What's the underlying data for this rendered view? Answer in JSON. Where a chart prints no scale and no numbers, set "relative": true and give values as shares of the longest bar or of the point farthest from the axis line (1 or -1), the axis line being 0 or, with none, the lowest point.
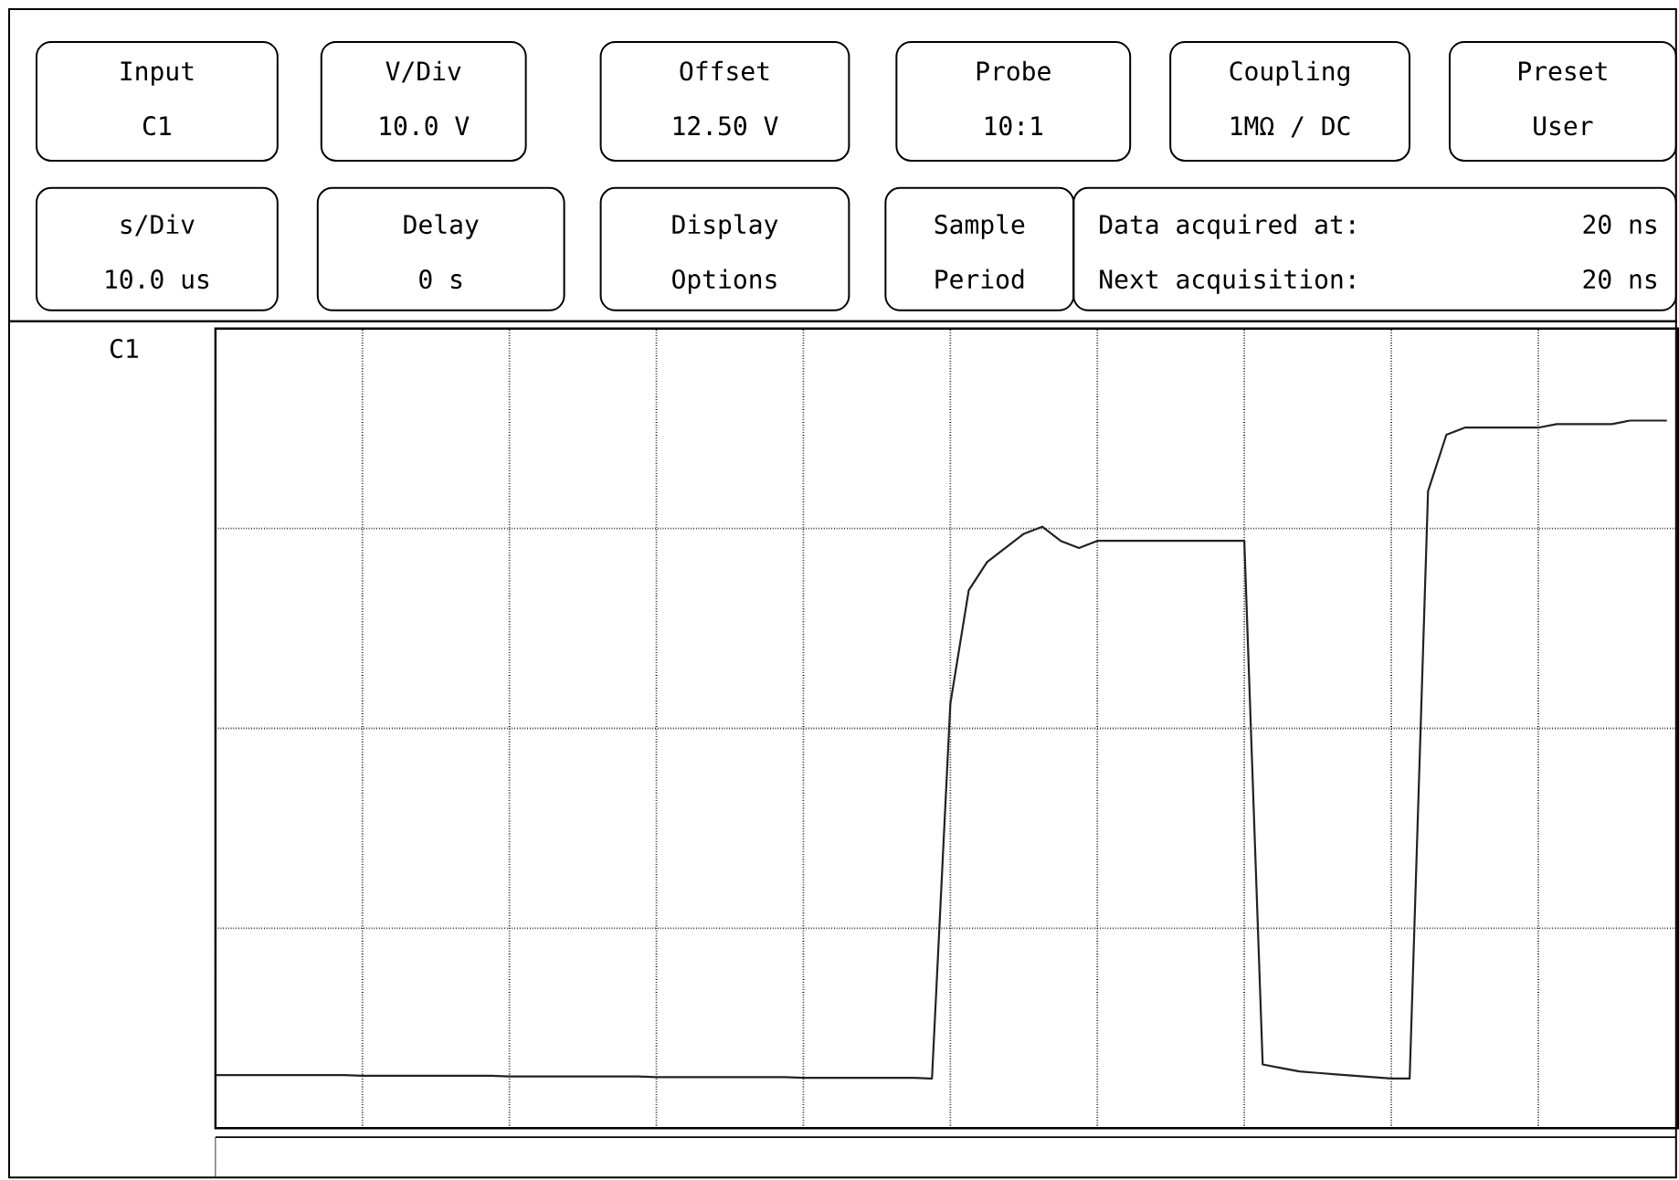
{
  "chart_data": {
    "type": "line",
    "relative": true,
    "grid": true,
    "tick_labels": false,
    "line_style": "solid",
    "color": "#222222",
    "categories": [
      null,
      null,
      null,
      null,
      null,
      null,
      null,
      null,
      null,
      null,
      null,
      null,
      null,
      null,
      null,
      null,
      null,
      null,
      null,
      null,
      null,
      null,
      null,
      null,
      null,
      null,
      null,
      null,
      null,
      null,
      null,
      null,
      null,
      null,
      null,
      null,
      null,
      null,
      null,
      null,
      null,
      null,
      null,
      null,
      null,
      null,
      null,
      null,
      null,
      null,
      null,
      null,
      null,
      null,
      null,
      null,
      null,
      null,
      null,
      null,
      null,
      null,
      null,
      null,
      null,
      null,
      null,
      null,
      null,
      null,
      null,
      null,
      null,
      null,
      null,
      null,
      null,
      null,
      null,
      null
    ],
    "values": [
      0.075,
      0.075,
      0.075,
      0.075,
      0.075,
      0.075,
      0.075,
      0.075,
      0.074,
      0.074,
      0.074,
      0.074,
      0.074,
      0.074,
      0.074,
      0.074,
      0.073,
      0.073,
      0.073,
      0.073,
      0.073,
      0.073,
      0.073,
      0.073,
      0.072,
      0.072,
      0.072,
      0.072,
      0.072,
      0.072,
      0.072,
      0.072,
      0.071,
      0.071,
      0.071,
      0.071,
      0.071,
      0.071,
      0.071,
      0.07,
      0.6,
      0.76,
      0.8,
      0.82,
      0.84,
      0.85,
      0.83,
      0.82,
      0.83,
      0.83,
      0.83,
      0.83,
      0.83,
      0.83,
      0.83,
      0.83,
      0.83,
      0.09,
      0.085,
      0.08,
      0.078,
      0.076,
      0.074,
      0.072,
      0.07,
      0.07,
      0.9,
      0.98,
      0.99,
      0.99,
      0.99,
      0.99,
      0.99,
      0.995,
      0.995,
      0.995,
      0.995,
      1.0,
      1.0,
      1.0
    ],
    "annotations": [
      "Input",
      "C1",
      "V/Div",
      "10.0  V",
      "Offset",
      "12.50  V",
      "Probe",
      "10:1",
      "Coupling",
      "1MΩ / DC",
      "Preset",
      "User",
      "s/Div",
      "10.0 us",
      "Delay",
      "0  s",
      "Display",
      "Options",
      "Sample",
      "Period",
      "Data acquired at:",
      "20 ns",
      "Next acquisition:",
      "20 ns",
      "C1"
    ]
  }
}
